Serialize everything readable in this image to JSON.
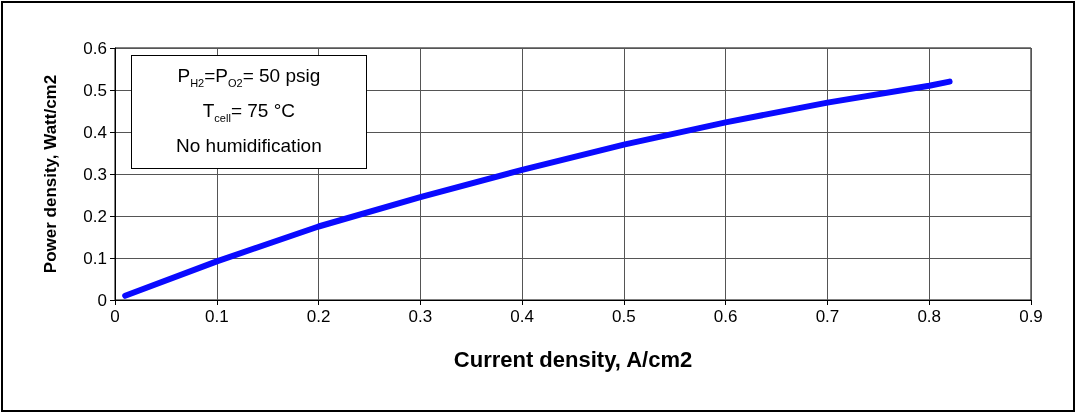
{
  "chart_data": {
    "type": "line",
    "xlabel": "Current density, A/cm2",
    "ylabel": "Power density, Watt/cm2",
    "annotations": [
      "P$_{H2}$=P$_{O2}$= 50 psig",
      "T$_{cell}$= 75 °C",
      "No humidification"
    ],
    "x": [
      0.01,
      0.1,
      0.2,
      0.3,
      0.4,
      0.5,
      0.6,
      0.7,
      0.8,
      0.82
    ],
    "series": [
      {
        "color": "#0a0aff",
        "values": [
          0.01,
          0.092,
          0.175,
          0.245,
          0.31,
          0.37,
          0.423,
          0.47,
          0.51,
          0.52
        ]
      }
    ],
    "xlim": [
      0,
      0.9
    ],
    "xticks": [
      0,
      0.1,
      0.2,
      0.3,
      0.4,
      0.5,
      0.6,
      0.7,
      0.8,
      0.9
    ],
    "ylim": [
      0,
      0.6
    ],
    "yticks": [
      0,
      0.1,
      0.2,
      0.3,
      0.4,
      0.5,
      0.6
    ],
    "grid": true,
    "marker": "none",
    "line_style": "solid"
  }
}
